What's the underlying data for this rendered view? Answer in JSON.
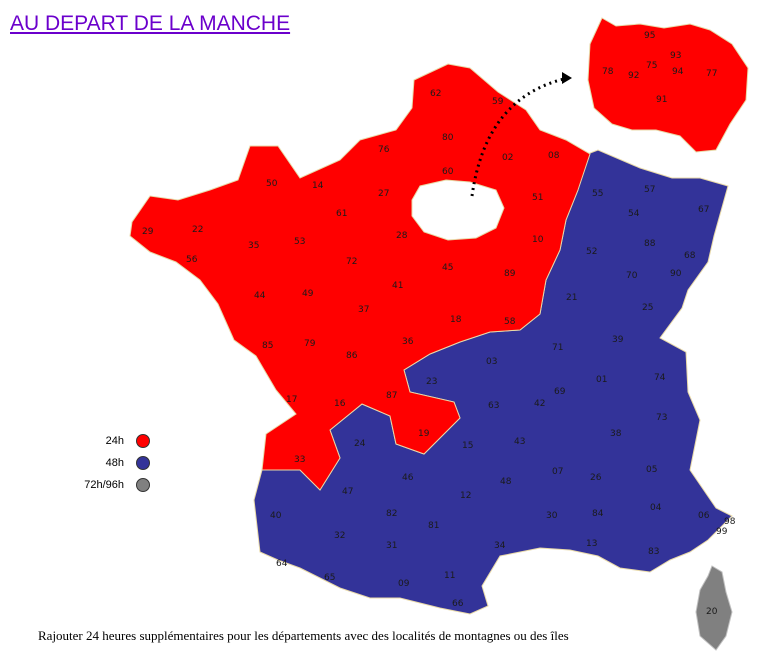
{
  "page": {
    "title": "AU DEPART DE LA MANCHE"
  },
  "colors": {
    "h24": "#ff0000",
    "h48": "#333399",
    "h72": "#808080",
    "border": "#e8d9a8"
  },
  "legend": [
    {
      "label": "24h",
      "color": "#ff0000"
    },
    {
      "label": "48h",
      "color": "#333399"
    },
    {
      "label": "72h/96h",
      "color": "#808080"
    }
  ],
  "footnote": "Rajouter 24 heures supplémentaires pour les départements avec des localités de montagnes ou des îles",
  "departments": {
    "red": [
      "62",
      "59",
      "80",
      "02",
      "08",
      "60",
      "76",
      "95",
      "50",
      "14",
      "27",
      "61",
      "28",
      "29",
      "22",
      "56",
      "35",
      "53",
      "72",
      "45",
      "44",
      "49",
      "37",
      "41",
      "89",
      "51",
      "10",
      "18",
      "58",
      "36",
      "86",
      "79",
      "85",
      "87",
      "17",
      "16",
      "19",
      "33"
    ],
    "blue": [
      "55",
      "57",
      "67",
      "54",
      "88",
      "68",
      "52",
      "70",
      "90",
      "25",
      "21",
      "71",
      "39",
      "01",
      "74",
      "73",
      "38",
      "69",
      "42",
      "03",
      "23",
      "63",
      "43",
      "15",
      "24",
      "47",
      "46",
      "12",
      "48",
      "07",
      "26",
      "05",
      "04",
      "06",
      "84",
      "30",
      "34",
      "81",
      "82",
      "40",
      "32",
      "31",
      "64",
      "65",
      "09",
      "11",
      "66",
      "13",
      "83",
      "98",
      "99"
    ],
    "grey": [
      "20"
    ],
    "idf_inset": [
      "95",
      "93",
      "75",
      "92",
      "94",
      "78",
      "77",
      "91"
    ]
  }
}
